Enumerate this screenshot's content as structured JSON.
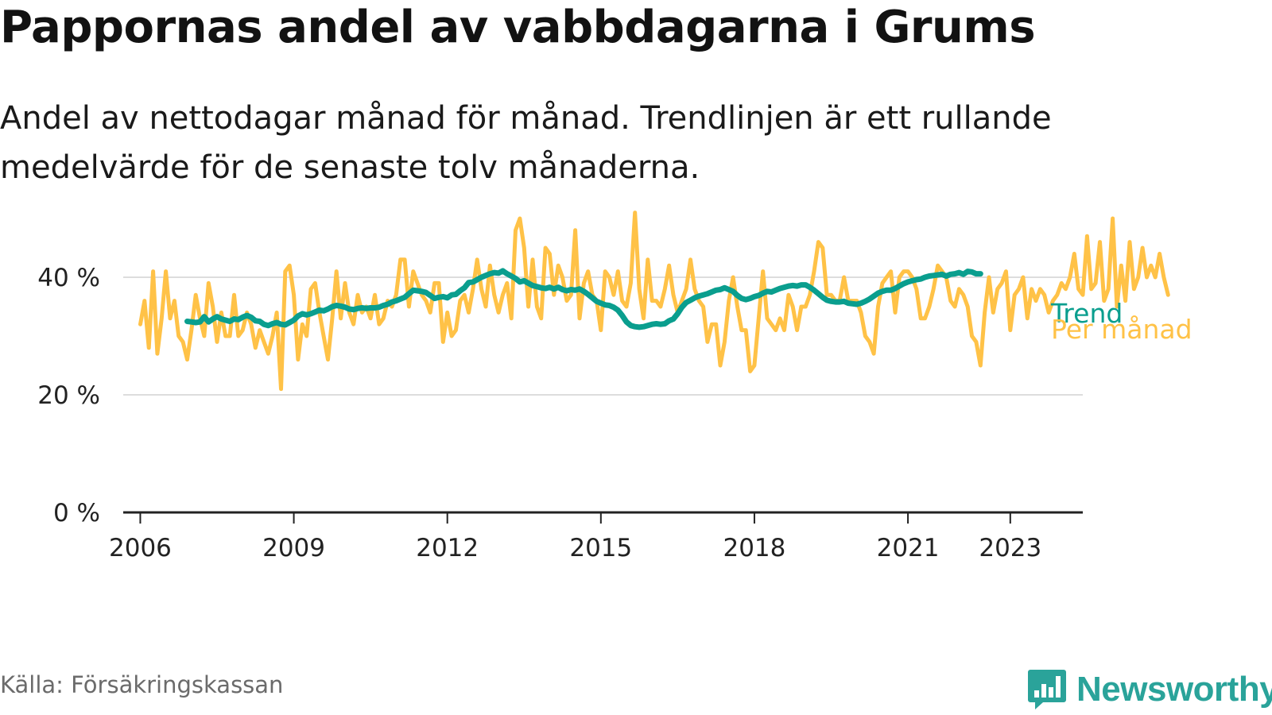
{
  "header": {
    "title": "Pappornas andel av vabbdagarna i Grums",
    "subtitle": "Andel av nettodagar månad för månad. Trendlinjen är ett rullande medelvärde för de senaste tolv månaderna."
  },
  "footer": {
    "source": "Källa: Försäkringskassan",
    "logo_text": "Newsworthy",
    "logo_icon": "bar-chart-speech-bubble-icon"
  },
  "colors": {
    "monthly": "#FFC247",
    "trend": "#0A9E8E",
    "grid": "#dddddd",
    "axis": "#222222",
    "logo": "#2aa39a"
  },
  "chart_data": {
    "type": "line",
    "title": "Pappornas andel av vabbdagarna i Grums",
    "xlabel": "",
    "ylabel": "",
    "ylim": [
      0,
      50
    ],
    "xlim": [
      "2005-09",
      "2024-06"
    ],
    "grid": true,
    "y_ticks": [
      {
        "value": 0,
        "label": "0 %"
      },
      {
        "value": 20,
        "label": "20 %"
      },
      {
        "value": 40,
        "label": "40 %"
      }
    ],
    "x_ticks": [
      {
        "date": "2006-01",
        "label": "2006"
      },
      {
        "date": "2009-01",
        "label": "2009"
      },
      {
        "date": "2012-01",
        "label": "2012"
      },
      {
        "date": "2015-01",
        "label": "2015"
      },
      {
        "date": "2018-01",
        "label": "2018"
      },
      {
        "date": "2021-01",
        "label": "2021"
      },
      {
        "date": "2023-01",
        "label": "2023"
      }
    ],
    "series": [
      {
        "name": "Per månad",
        "color": "#FFC247",
        "start": "2006-01",
        "values": [
          32,
          36,
          28,
          41,
          27,
          33,
          41,
          33,
          36,
          30,
          29,
          26,
          31,
          37,
          33,
          30,
          39,
          35,
          29,
          34,
          30,
          30,
          37,
          30,
          31,
          34,
          32,
          28,
          31,
          29,
          27,
          30,
          34,
          21,
          41,
          42,
          37,
          26,
          32,
          30,
          38,
          39,
          34,
          30,
          26,
          33,
          41,
          33,
          39,
          34,
          32,
          37,
          34,
          35,
          33,
          37,
          32,
          33,
          36,
          35,
          37,
          43,
          43,
          35,
          41,
          39,
          37,
          36,
          34,
          39,
          39,
          29,
          34,
          30,
          31,
          36,
          37,
          34,
          38,
          43,
          38,
          35,
          42,
          37,
          34,
          37,
          39,
          33,
          48,
          50,
          45,
          35,
          43,
          35,
          33,
          45,
          44,
          37,
          42,
          40,
          36,
          37,
          48,
          33,
          39,
          41,
          37,
          36,
          31,
          41,
          40,
          37,
          41,
          36,
          35,
          39,
          51,
          38,
          33,
          43,
          36,
          36,
          35,
          38,
          42,
          37,
          34,
          36,
          38,
          43,
          38,
          36,
          35,
          29,
          32,
          32,
          25,
          29,
          36,
          40,
          35,
          31,
          31,
          24,
          25,
          33,
          41,
          33,
          32,
          31,
          33,
          31,
          37,
          35,
          31,
          35,
          35,
          37,
          41,
          46,
          45,
          37,
          37,
          36,
          36,
          40,
          36,
          36,
          36,
          34,
          30,
          29,
          27,
          35,
          39,
          40,
          41,
          34,
          40,
          41,
          41,
          40,
          38,
          33,
          33,
          35,
          38,
          42,
          41,
          40,
          36,
          35,
          38,
          37,
          35,
          30,
          29,
          25,
          34,
          40,
          34,
          38,
          39,
          41,
          31,
          37,
          38,
          40,
          33,
          38,
          36,
          38,
          37,
          34,
          36,
          37,
          39,
          38,
          40,
          44,
          38,
          37,
          47,
          38,
          39,
          46,
          36,
          38,
          50,
          35,
          42,
          36,
          46,
          38,
          40,
          45,
          40,
          42,
          40,
          44,
          40,
          37
        ]
      },
      {
        "name": "Trend",
        "color": "#0A9E8E",
        "start": "2006-12",
        "values": [
          32.5,
          32.4,
          32.3,
          32.4,
          33.3,
          32.4,
          32.9,
          33.3,
          32.9,
          32.7,
          32.5,
          32.9,
          32.8,
          33.2,
          33.5,
          33.2,
          32.6,
          32.5,
          32.0,
          31.8,
          32.1,
          32.3,
          32.0,
          31.9,
          32.3,
          32.7,
          33.4,
          33.8,
          33.6,
          33.8,
          34.1,
          34.4,
          34.3,
          34.6,
          35.0,
          35.2,
          35.1,
          34.9,
          34.6,
          34.5,
          34.7,
          34.8,
          34.7,
          34.8,
          34.8,
          34.9,
          35.2,
          35.4,
          35.8,
          36.0,
          36.3,
          36.6,
          37.2,
          37.8,
          37.7,
          37.6,
          37.4,
          36.9,
          36.4,
          36.6,
          36.7,
          36.5,
          37.0,
          37.1,
          37.7,
          38.2,
          39.1,
          39.2,
          39.6,
          40.0,
          40.3,
          40.6,
          40.8,
          40.7,
          41.1,
          40.6,
          40.2,
          39.8,
          39.2,
          39.4,
          39.0,
          38.6,
          38.4,
          38.2,
          38.1,
          38.3,
          38.0,
          38.3,
          37.9,
          37.7,
          37.9,
          37.8,
          38.0,
          37.6,
          37.1,
          36.5,
          35.9,
          35.6,
          35.3,
          35.2,
          34.9,
          34.4,
          33.5,
          32.4,
          31.8,
          31.6,
          31.5,
          31.6,
          31.8,
          32.0,
          32.1,
          32.0,
          32.1,
          32.6,
          32.9,
          33.8,
          34.9,
          35.7,
          36.1,
          36.5,
          36.8,
          37.0,
          37.2,
          37.5,
          37.8,
          37.9,
          38.2,
          37.9,
          37.6,
          36.9,
          36.4,
          36.2,
          36.4,
          36.7,
          36.9,
          37.3,
          37.6,
          37.5,
          37.8,
          38.1,
          38.3,
          38.5,
          38.6,
          38.5,
          38.7,
          38.7,
          38.3,
          37.8,
          37.2,
          36.6,
          36.1,
          35.9,
          35.8,
          35.8,
          35.9,
          35.6,
          35.5,
          35.4,
          35.6,
          35.9,
          36.3,
          36.8,
          37.3,
          37.6,
          37.8,
          37.8,
          38.1,
          38.5,
          38.9,
          39.2,
          39.4,
          39.6,
          39.7,
          40.0,
          40.2,
          40.3,
          40.4,
          40.5,
          40.2,
          40.5,
          40.6,
          40.8,
          40.5,
          41.0,
          40.9,
          40.6,
          40.6
        ]
      }
    ],
    "labels": {
      "trend": "Trend",
      "monthly": "Per månad"
    }
  }
}
